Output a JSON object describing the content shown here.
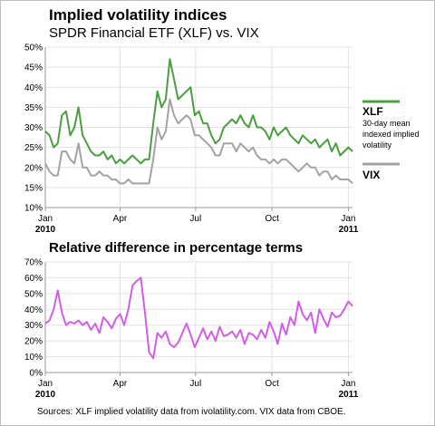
{
  "title": "Implied volatility indices",
  "subtitle": "SPDR Financial ETF (XLF) vs. VIX",
  "source": "Sources: XLF implied volatility data from ivolatility.com. VIX data from CBOE.",
  "colors": {
    "xlf": "#4a9e3f",
    "vix": "#a3a3a3",
    "diff": "#d35ee6",
    "grid": "#e2e2e2",
    "axis": "#999999"
  },
  "chart_data": [
    {
      "type": "line",
      "title": "",
      "ylim": [
        10,
        50
      ],
      "yticks": [
        10,
        15,
        20,
        25,
        30,
        35,
        40,
        45,
        50
      ],
      "ytick_labels": [
        "10%",
        "15%",
        "20%",
        "25%",
        "30%",
        "35%",
        "40%",
        "45%",
        "50%"
      ],
      "xlim": [
        0,
        370
      ],
      "xticks": [
        0,
        90,
        181,
        273,
        365
      ],
      "xtick_labels": [
        "Jan",
        "Apr",
        "Jul",
        "Oct",
        "Jan"
      ],
      "year_labels": [
        {
          "x": 0,
          "label": "2010"
        },
        {
          "x": 365,
          "label": "2011"
        }
      ],
      "series": [
        {
          "name": "XLF",
          "description": "30-day mean indexed implied volatility",
          "x": [
            0,
            5,
            10,
            15,
            20,
            25,
            30,
            35,
            40,
            45,
            50,
            55,
            60,
            65,
            70,
            75,
            80,
            85,
            90,
            95,
            100,
            105,
            110,
            115,
            120,
            125,
            130,
            135,
            140,
            145,
            150,
            155,
            160,
            165,
            170,
            175,
            180,
            185,
            190,
            195,
            200,
            205,
            210,
            215,
            220,
            225,
            230,
            235,
            240,
            245,
            250,
            255,
            260,
            265,
            270,
            275,
            280,
            285,
            290,
            295,
            300,
            305,
            310,
            315,
            320,
            325,
            330,
            335,
            340,
            345,
            350,
            355,
            360,
            365,
            370
          ],
          "y": [
            29,
            28,
            25,
            26,
            33,
            34,
            28,
            30,
            35,
            28,
            26,
            24,
            23,
            23,
            24,
            22,
            23,
            21,
            22,
            21,
            22,
            23,
            22,
            21,
            22,
            22,
            31,
            39,
            35,
            37,
            47,
            42,
            37,
            38,
            39,
            40,
            33,
            34,
            31,
            31,
            28,
            26,
            27,
            30,
            31,
            32,
            31,
            33,
            31,
            30,
            33,
            30,
            30,
            29,
            27,
            30,
            28,
            29,
            30,
            28,
            27,
            26,
            28,
            27,
            26,
            27,
            25,
            26,
            27,
            24,
            26,
            23,
            24,
            25,
            24
          ]
        },
        {
          "name": "VIX",
          "x": [
            0,
            5,
            10,
            15,
            20,
            25,
            30,
            35,
            40,
            45,
            50,
            55,
            60,
            65,
            70,
            75,
            80,
            85,
            90,
            95,
            100,
            105,
            110,
            115,
            120,
            125,
            130,
            135,
            140,
            145,
            150,
            155,
            160,
            165,
            170,
            175,
            180,
            185,
            190,
            195,
            200,
            205,
            210,
            215,
            220,
            225,
            230,
            235,
            240,
            245,
            250,
            255,
            260,
            265,
            270,
            275,
            280,
            285,
            290,
            295,
            300,
            305,
            310,
            315,
            320,
            325,
            330,
            335,
            340,
            345,
            350,
            355,
            360,
            365,
            370
          ],
          "y": [
            21,
            19,
            18,
            18,
            24,
            24,
            22,
            21,
            26,
            20,
            20,
            18,
            18,
            19,
            18,
            18,
            17,
            17,
            16,
            16,
            17,
            16,
            16,
            16,
            16,
            16,
            22,
            30,
            27,
            29,
            37,
            33,
            31,
            32,
            33,
            32,
            28,
            28,
            27,
            26,
            25,
            23,
            23,
            26,
            26,
            26,
            24,
            26,
            25,
            24,
            25,
            23,
            22,
            22,
            21,
            22,
            21,
            22,
            22,
            21,
            20,
            19,
            20,
            21,
            20,
            20,
            18,
            19,
            19,
            17,
            18,
            17,
            17,
            17,
            16
          ]
        }
      ]
    },
    {
      "type": "line",
      "title": "Relative difference in percentage terms",
      "ylim": [
        0,
        70
      ],
      "yticks": [
        0,
        10,
        20,
        30,
        40,
        50,
        60,
        70
      ],
      "ytick_labels": [
        "0%",
        "10%",
        "20%",
        "30%",
        "40%",
        "50%",
        "60%",
        "70%"
      ],
      "xlim": [
        0,
        370
      ],
      "xticks": [
        0,
        90,
        181,
        273,
        365
      ],
      "xtick_labels": [
        "Jan",
        "Apr",
        "Jul",
        "Oct",
        "Jan"
      ],
      "year_labels": [
        {
          "x": 0,
          "label": "2010"
        },
        {
          "x": 365,
          "label": "2011"
        }
      ],
      "series": [
        {
          "name": "",
          "x": [
            0,
            5,
            10,
            15,
            20,
            25,
            30,
            35,
            40,
            45,
            50,
            55,
            60,
            65,
            70,
            75,
            80,
            85,
            90,
            95,
            100,
            105,
            110,
            115,
            120,
            125,
            130,
            135,
            140,
            145,
            150,
            155,
            160,
            165,
            170,
            175,
            180,
            185,
            190,
            195,
            200,
            205,
            210,
            215,
            220,
            225,
            230,
            235,
            240,
            245,
            250,
            255,
            260,
            265,
            270,
            275,
            280,
            285,
            290,
            295,
            300,
            305,
            310,
            315,
            320,
            325,
            330,
            335,
            340,
            345,
            350,
            355,
            360,
            365,
            370
          ],
          "y": [
            31,
            33,
            40,
            52,
            38,
            30,
            32,
            31,
            33,
            30,
            32,
            27,
            31,
            25,
            35,
            32,
            28,
            34,
            37,
            30,
            40,
            55,
            58,
            60,
            38,
            13,
            9,
            25,
            22,
            26,
            18,
            16,
            19,
            25,
            31,
            24,
            16,
            22,
            28,
            21,
            26,
            20,
            29,
            23,
            24,
            26,
            22,
            27,
            18,
            25,
            24,
            21,
            27,
            22,
            32,
            26,
            18,
            31,
            24,
            35,
            30,
            45,
            37,
            33,
            38,
            25,
            40,
            34,
            29,
            38,
            35,
            36,
            40,
            45,
            42
          ]
        }
      ]
    }
  ],
  "legend": {
    "xlf_label": "XLF",
    "xlf_desc": [
      "30-day mean",
      "indexed implied",
      "volatility"
    ],
    "vix_label": "VIX"
  }
}
